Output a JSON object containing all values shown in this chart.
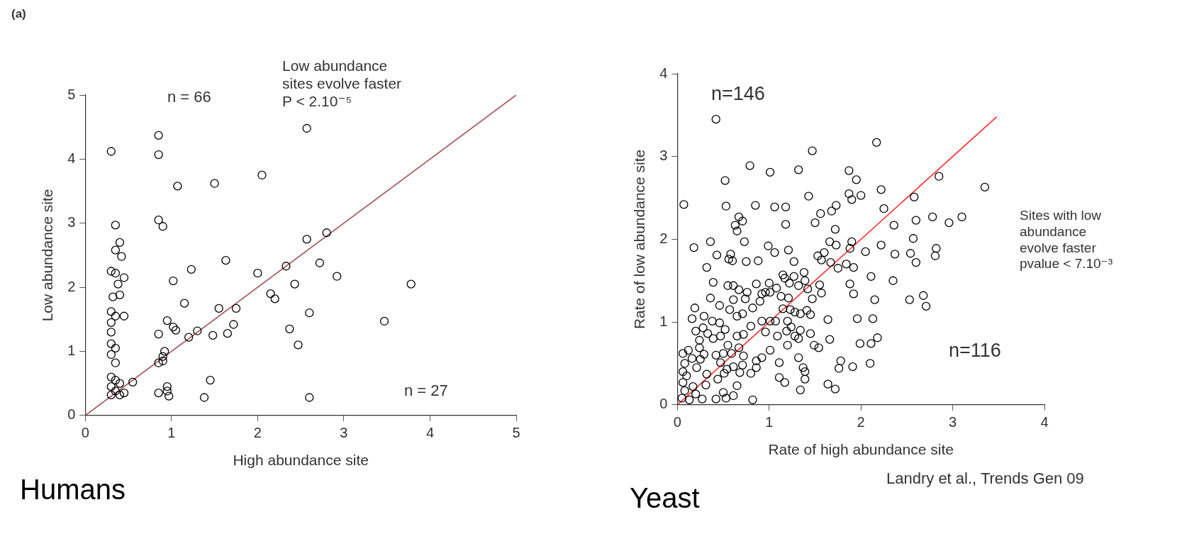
{
  "chart_data": [
    {
      "type": "scatter",
      "title": "Humans",
      "xlabel": "High abundance site",
      "ylabel": "Low abundance site",
      "xlim": [
        0,
        5
      ],
      "ylim": [
        0,
        5
      ],
      "xticks": [
        0,
        1,
        2,
        3,
        4,
        5
      ],
      "yticks": [
        0,
        1,
        2,
        3,
        4,
        5
      ],
      "grid": false,
      "legend": false,
      "marker": "circle",
      "annotations": [
        "(a)",
        "Low abundance\nsites evolve faster\nP < 2.10⁻⁵",
        "n = 66",
        "n = 27"
      ],
      "series": [
        {
          "type": "scatter",
          "color": "#000000",
          "x": [
            0.3,
            0.85,
            0.85,
            2.57,
            1.07,
            1.5,
            2.05,
            0.85,
            0.9,
            0.35,
            0.4,
            0.35,
            0.42,
            0.3,
            0.35,
            0.45,
            0.38,
            0.4,
            0.32,
            0.3,
            0.35,
            0.45,
            0.3,
            0.3,
            0.3,
            0.35,
            0.3,
            0.35,
            0.3,
            0.35,
            0.4,
            0.3,
            0.35,
            0.3,
            0.4,
            0.45,
            0.55,
            2.57,
            2.8,
            2.33,
            2.72,
            2.92,
            2.0,
            1.63,
            1.23,
            1.02,
            2.15,
            2.2,
            2.43,
            3.78,
            0.95,
            1.02,
            1.15,
            0.85,
            1.05,
            1.3,
            1.55,
            1.75,
            1.65,
            1.72,
            0.9,
            0.92,
            0.85,
            1.2,
            1.48,
            2.37,
            2.47,
            2.6,
            3.47,
            0.95,
            0.95,
            0.85,
            0.97,
            1.45,
            1.38,
            2.6,
            0.9
          ],
          "values": [
            4.12,
            4.37,
            4.07,
            4.48,
            3.58,
            3.62,
            3.75,
            3.05,
            2.95,
            2.97,
            2.7,
            2.58,
            2.48,
            2.25,
            2.22,
            2.15,
            2.05,
            1.88,
            1.85,
            1.62,
            1.55,
            1.55,
            1.45,
            1.3,
            1.12,
            1.05,
            0.95,
            0.82,
            0.6,
            0.55,
            0.5,
            0.45,
            0.38,
            0.32,
            0.32,
            0.35,
            0.52,
            2.75,
            2.85,
            2.33,
            2.38,
            2.17,
            2.22,
            2.42,
            2.28,
            2.1,
            1.9,
            1.82,
            2.05,
            2.05,
            1.48,
            1.38,
            1.75,
            1.27,
            1.33,
            1.32,
            1.67,
            1.67,
            1.28,
            1.42,
            0.92,
            1.0,
            0.82,
            1.22,
            1.25,
            1.35,
            1.1,
            1.6,
            1.47,
            0.45,
            0.38,
            0.35,
            0.3,
            0.55,
            0.28,
            0.28,
            0.85
          ]
        },
        {
          "type": "line",
          "marker": "none",
          "color": "#a0505a",
          "x": [
            0,
            5
          ],
          "values": [
            0,
            5
          ]
        }
      ]
    },
    {
      "type": "scatter",
      "title": "Yeast",
      "xlabel": "Rate of high abundance site",
      "ylabel": "Rate of low abundance site",
      "xlim": [
        0,
        4
      ],
      "ylim": [
        0,
        4
      ],
      "xticks": [
        0,
        1,
        2,
        3,
        4
      ],
      "yticks": [
        0,
        1,
        2,
        3,
        4
      ],
      "grid": false,
      "legend": false,
      "marker": "circle",
      "annotations": [
        "n=146",
        "n=116",
        "Sites with low\nabundance\nevolve faster\npvalue < 7.10⁻³",
        "Landry et al., Trends Gen 09"
      ],
      "series": [
        {
          "type": "scatter",
          "color": "#000000",
          "x": [
            0.42,
            2.17,
            1.47,
            0.79,
            1.01,
            1.32,
            0.52,
            1.87,
            1.95,
            2.85,
            3.35,
            0.07,
            0.53,
            0.85,
            1.06,
            1.18,
            1.43,
            1.87,
            1.9,
            2.0,
            2.22,
            2.58,
            2.25,
            0.67,
            0.71,
            0.63,
            0.65,
            1.56,
            1.68,
            1.73,
            1.5,
            1.18,
            1.72,
            2.36,
            2.6,
            2.78,
            2.96,
            3.1,
            2.57,
            0.36,
            0.18,
            0.73,
            0.99,
            1.06,
            1.21,
            1.66,
            1.73,
            1.9,
            1.88,
            2.05,
            2.22,
            2.37,
            2.54,
            2.82,
            2.81,
            2.6,
            0.43,
            0.58,
            0.56,
            0.6,
            0.88,
            0.75,
            1.27,
            1.53,
            1.6,
            1.57,
            1.67,
            0.32,
            1.84,
            1.92,
            1.75,
            0.39,
            0.55,
            0.61,
            0.67,
            0.76,
            0.86,
            1.0,
            1.08,
            1.01,
            1.15,
            1.17,
            1.22,
            1.27,
            1.38,
            1.39,
            1.32,
            1.42,
            1.55,
            1.57,
            1.88,
            1.92,
            2.11,
            2.35,
            0.36,
            0.46,
            0.61,
            0.74,
            0.9,
            0.92,
            0.96,
            1.13,
            1.21,
            1.47,
            2.15,
            2.53,
            2.68,
            2.71,
            0.19,
            0.57,
            0.65,
            0.71,
            0.82,
            1.15,
            1.23,
            1.28,
            1.41,
            1.45,
            1.34,
            0.16,
            0.29,
            0.38,
            0.46,
            0.52,
            0.92,
            1.01,
            1.07,
            1.2,
            1.24,
            1.19,
            1.64,
            1.96,
            2.13,
            0.2,
            0.28,
            0.33,
            0.24,
            0.39,
            0.47,
            0.55,
            0.65,
            0.72,
            0.8,
            0.96,
            1.09,
            1.34,
            1.45,
            1.28,
            1.32,
            1.66,
            1.2,
            1.49,
            1.54,
            1.99,
            2.11,
            2.18,
            0.06,
            0.12,
            0.24,
            0.29,
            0.42,
            0.5,
            0.59,
            0.67,
            0.72,
            0.16,
            0.25,
            0.08,
            0.47,
            0.54,
            0.61,
            0.71,
            0.86,
            0.92,
            1.01,
            1.11,
            1.32,
            1.78,
            1.76,
            1.91,
            2.1,
            0.06,
            0.1,
            0.21,
            0.32,
            0.44,
            0.51,
            0.68,
            0.8,
            0.86,
            1.37,
            1.39,
            1.39,
            1.11,
            1.17,
            1.64,
            1.72,
            1.34,
            0.06,
            0.08,
            0.17,
            0.31,
            0.65,
            0.5,
            0.2,
            0.05,
            0.13,
            0.27,
            0.42,
            0.53,
            0.61,
            0.82
          ],
          "values": [
            3.45,
            3.17,
            3.07,
            2.89,
            2.81,
            2.84,
            2.71,
            2.83,
            2.72,
            2.76,
            2.63,
            2.42,
            2.4,
            2.41,
            2.39,
            2.39,
            2.52,
            2.55,
            2.48,
            2.53,
            2.6,
            2.51,
            2.37,
            2.27,
            2.22,
            2.17,
            2.1,
            2.31,
            2.34,
            2.41,
            2.2,
            2.18,
            2.12,
            2.17,
            2.23,
            2.27,
            2.2,
            2.27,
            2.01,
            1.97,
            1.9,
            1.97,
            1.92,
            1.84,
            1.87,
            1.97,
            1.93,
            1.97,
            1.89,
            1.85,
            1.93,
            1.82,
            1.83,
            1.89,
            1.8,
            1.72,
            1.81,
            1.82,
            1.76,
            1.74,
            1.74,
            1.73,
            1.73,
            1.8,
            1.84,
            1.75,
            1.72,
            1.66,
            1.7,
            1.66,
            1.65,
            1.48,
            1.44,
            1.44,
            1.39,
            1.36,
            1.46,
            1.47,
            1.41,
            1.36,
            1.57,
            1.53,
            1.47,
            1.55,
            1.6,
            1.5,
            1.44,
            1.4,
            1.45,
            1.35,
            1.46,
            1.34,
            1.55,
            1.5,
            1.29,
            1.2,
            1.27,
            1.28,
            1.25,
            1.34,
            1.36,
            1.31,
            1.29,
            1.28,
            1.27,
            1.27,
            1.32,
            1.19,
            1.17,
            1.15,
            1.07,
            1.1,
            1.17,
            1.16,
            1.15,
            1.12,
            1.14,
            1.09,
            1.1,
            1.04,
            1.07,
            1.01,
            0.99,
            0.91,
            1.01,
            1.01,
            1.01,
            1.01,
            0.94,
            0.89,
            1.03,
            1.04,
            1.04,
            0.89,
            0.93,
            0.86,
            0.78,
            0.8,
            0.83,
            0.72,
            0.83,
            0.85,
            0.95,
            0.88,
            0.83,
            0.9,
            0.86,
            0.83,
            0.8,
            0.79,
            0.72,
            0.72,
            0.69,
            0.74,
            0.74,
            0.81,
            0.62,
            0.66,
            0.69,
            0.61,
            0.6,
            0.62,
            0.62,
            0.69,
            0.59,
            0.56,
            0.55,
            0.5,
            0.51,
            0.43,
            0.46,
            0.48,
            0.53,
            0.57,
            0.66,
            0.51,
            0.57,
            0.53,
            0.44,
            0.46,
            0.5,
            0.4,
            0.35,
            0.45,
            0.37,
            0.31,
            0.38,
            0.39,
            0.38,
            0.45,
            0.45,
            0.4,
            0.31,
            0.33,
            0.27,
            0.25,
            0.19,
            0.18,
            0.27,
            0.17,
            0.22,
            0.24,
            0.23,
            0.15,
            0.13,
            0.08,
            0.06,
            0.07,
            0.07,
            0.08,
            0.11,
            0.06
          ]
        },
        {
          "type": "line",
          "marker": "none",
          "color": "#ff2a2a",
          "x": [
            0,
            3.48
          ],
          "values": [
            0,
            3.48
          ]
        }
      ]
    }
  ]
}
